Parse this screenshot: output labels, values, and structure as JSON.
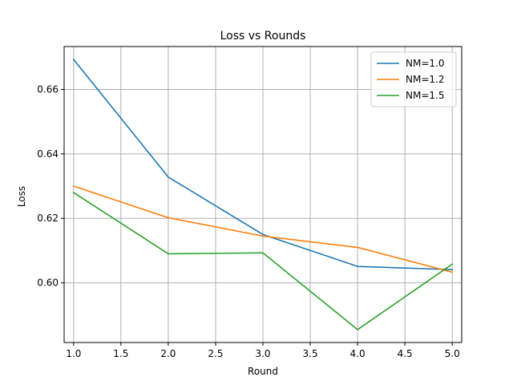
{
  "chart_data": {
    "type": "line",
    "title": "Loss vs Rounds",
    "xlabel": "Round",
    "ylabel": "Loss",
    "x": [
      1.0,
      2.0,
      3.0,
      4.0,
      5.0
    ],
    "series": [
      {
        "name": "NM=1.0",
        "color": "#1f77b4",
        "values": [
          0.6693,
          0.6328,
          0.615,
          0.6051,
          0.6041
        ]
      },
      {
        "name": "NM=1.2",
        "color": "#ff7f0e",
        "values": [
          0.63,
          0.6202,
          0.6145,
          0.611,
          0.6033
        ]
      },
      {
        "name": "NM=1.5",
        "color": "#2ca02c",
        "values": [
          0.628,
          0.609,
          0.6093,
          0.5855,
          0.6058
        ]
      }
    ],
    "xlim": [
      0.9,
      5.1
    ],
    "ylim": [
      0.5815,
      0.6733
    ],
    "xticks": [
      1.0,
      1.5,
      2.0,
      2.5,
      3.0,
      3.5,
      4.0,
      4.5,
      5.0
    ],
    "xtick_labels": [
      "1.0",
      "1.5",
      "2.0",
      "2.5",
      "3.0",
      "3.5",
      "4.0",
      "4.5",
      "5.0"
    ],
    "yticks": [
      0.6,
      0.62,
      0.64,
      0.66
    ],
    "ytick_labels": [
      "0.60",
      "0.62",
      "0.64",
      "0.66"
    ],
    "grid": true,
    "legend_position": "top-right"
  }
}
